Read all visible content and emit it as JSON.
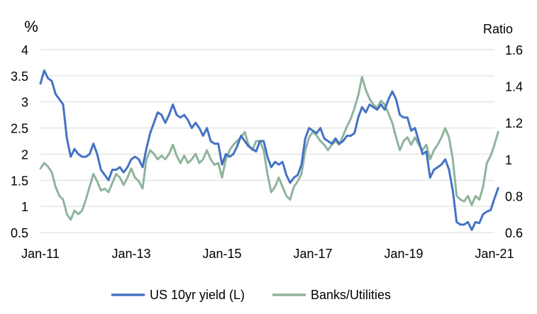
{
  "chart_data": {
    "type": "line",
    "x_tick_labels": [
      "Jan-11",
      "Jan-13",
      "Jan-15",
      "Jan-17",
      "Jan-19",
      "Jan-21"
    ],
    "x_range": [
      "2011-01",
      "2021-01"
    ],
    "left_axis": {
      "label": "%",
      "ylim": [
        0.5,
        4
      ],
      "ticks": [
        "0.5",
        "1",
        "1.5",
        "2",
        "2.5",
        "3",
        "3.5",
        "4"
      ]
    },
    "right_axis": {
      "label": "Ratio",
      "ylim": [
        0.6,
        1.6
      ],
      "ticks": [
        "0.6",
        "0.8",
        "1",
        "1.2",
        "1.4",
        "1.6"
      ]
    },
    "grid": "horizontal",
    "legend_position": "bottom",
    "series": [
      {
        "name": "US 10yr yield (L)",
        "axis": "left",
        "color": "#4472C4",
        "points": [
          [
            "2011-01",
            3.35
          ],
          [
            "2011-02",
            3.6
          ],
          [
            "2011-03",
            3.45
          ],
          [
            "2011-04",
            3.4
          ],
          [
            "2011-05",
            3.15
          ],
          [
            "2011-06",
            3.05
          ],
          [
            "2011-07",
            2.95
          ],
          [
            "2011-08",
            2.3
          ],
          [
            "2011-09",
            1.95
          ],
          [
            "2011-10",
            2.1
          ],
          [
            "2011-11",
            2.0
          ],
          [
            "2011-12",
            1.95
          ],
          [
            "2012-01",
            1.95
          ],
          [
            "2012-02",
            2.0
          ],
          [
            "2012-03",
            2.2
          ],
          [
            "2012-04",
            2.0
          ],
          [
            "2012-05",
            1.7
          ],
          [
            "2012-06",
            1.6
          ],
          [
            "2012-07",
            1.5
          ],
          [
            "2012-08",
            1.7
          ],
          [
            "2012-09",
            1.7
          ],
          [
            "2012-10",
            1.75
          ],
          [
            "2012-11",
            1.65
          ],
          [
            "2012-12",
            1.75
          ],
          [
            "2013-01",
            1.9
          ],
          [
            "2013-02",
            1.95
          ],
          [
            "2013-03",
            1.9
          ],
          [
            "2013-04",
            1.75
          ],
          [
            "2013-05",
            2.1
          ],
          [
            "2013-06",
            2.4
          ],
          [
            "2013-07",
            2.6
          ],
          [
            "2013-08",
            2.8
          ],
          [
            "2013-09",
            2.75
          ],
          [
            "2013-10",
            2.6
          ],
          [
            "2013-11",
            2.75
          ],
          [
            "2013-12",
            2.95
          ],
          [
            "2014-01",
            2.75
          ],
          [
            "2014-02",
            2.7
          ],
          [
            "2014-03",
            2.75
          ],
          [
            "2014-04",
            2.65
          ],
          [
            "2014-05",
            2.5
          ],
          [
            "2014-06",
            2.6
          ],
          [
            "2014-07",
            2.5
          ],
          [
            "2014-08",
            2.35
          ],
          [
            "2014-09",
            2.5
          ],
          [
            "2014-10",
            2.25
          ],
          [
            "2014-11",
            2.2
          ],
          [
            "2014-12",
            2.2
          ],
          [
            "2015-01",
            1.8
          ],
          [
            "2015-02",
            2.0
          ],
          [
            "2015-03",
            1.95
          ],
          [
            "2015-04",
            2.0
          ],
          [
            "2015-05",
            2.15
          ],
          [
            "2015-06",
            2.35
          ],
          [
            "2015-07",
            2.25
          ],
          [
            "2015-08",
            2.15
          ],
          [
            "2015-09",
            2.1
          ],
          [
            "2015-10",
            2.05
          ],
          [
            "2015-11",
            2.25
          ],
          [
            "2015-12",
            2.25
          ],
          [
            "2016-01",
            1.95
          ],
          [
            "2016-02",
            1.75
          ],
          [
            "2016-03",
            1.85
          ],
          [
            "2016-04",
            1.8
          ],
          [
            "2016-05",
            1.85
          ],
          [
            "2016-06",
            1.6
          ],
          [
            "2016-07",
            1.45
          ],
          [
            "2016-08",
            1.55
          ],
          [
            "2016-09",
            1.6
          ],
          [
            "2016-10",
            1.8
          ],
          [
            "2016-11",
            2.3
          ],
          [
            "2016-12",
            2.5
          ],
          [
            "2017-01",
            2.45
          ],
          [
            "2017-02",
            2.4
          ],
          [
            "2017-03",
            2.5
          ],
          [
            "2017-04",
            2.3
          ],
          [
            "2017-05",
            2.25
          ],
          [
            "2017-06",
            2.2
          ],
          [
            "2017-07",
            2.3
          ],
          [
            "2017-08",
            2.2
          ],
          [
            "2017-09",
            2.25
          ],
          [
            "2017-10",
            2.35
          ],
          [
            "2017-11",
            2.35
          ],
          [
            "2017-12",
            2.4
          ],
          [
            "2018-01",
            2.7
          ],
          [
            "2018-02",
            2.9
          ],
          [
            "2018-03",
            2.8
          ],
          [
            "2018-04",
            2.95
          ],
          [
            "2018-05",
            2.9
          ],
          [
            "2018-06",
            2.85
          ],
          [
            "2018-07",
            2.95
          ],
          [
            "2018-08",
            2.85
          ],
          [
            "2018-09",
            3.05
          ],
          [
            "2018-10",
            3.2
          ],
          [
            "2018-11",
            3.05
          ],
          [
            "2018-12",
            2.75
          ],
          [
            "2019-01",
            2.7
          ],
          [
            "2019-02",
            2.7
          ],
          [
            "2019-03",
            2.45
          ],
          [
            "2019-04",
            2.5
          ],
          [
            "2019-05",
            2.25
          ],
          [
            "2019-06",
            2.0
          ],
          [
            "2019-07",
            2.05
          ],
          [
            "2019-08",
            1.55
          ],
          [
            "2019-09",
            1.7
          ],
          [
            "2019-10",
            1.75
          ],
          [
            "2019-11",
            1.8
          ],
          [
            "2019-12",
            1.9
          ],
          [
            "2020-01",
            1.7
          ],
          [
            "2020-02",
            1.3
          ],
          [
            "2020-03",
            0.7
          ],
          [
            "2020-04",
            0.65
          ],
          [
            "2020-05",
            0.65
          ],
          [
            "2020-06",
            0.7
          ],
          [
            "2020-07",
            0.55
          ],
          [
            "2020-08",
            0.7
          ],
          [
            "2020-09",
            0.68
          ],
          [
            "2020-10",
            0.85
          ],
          [
            "2020-11",
            0.9
          ],
          [
            "2020-12",
            0.93
          ],
          [
            "2021-01",
            1.15
          ],
          [
            "2021-02",
            1.35
          ]
        ]
      },
      {
        "name": "Banks/Utilities",
        "axis": "right",
        "color": "#8FB49D",
        "points": [
          [
            "2011-01",
            0.95
          ],
          [
            "2011-02",
            0.98
          ],
          [
            "2011-03",
            0.96
          ],
          [
            "2011-04",
            0.93
          ],
          [
            "2011-05",
            0.85
          ],
          [
            "2011-06",
            0.8
          ],
          [
            "2011-07",
            0.78
          ],
          [
            "2011-08",
            0.7
          ],
          [
            "2011-09",
            0.67
          ],
          [
            "2011-10",
            0.72
          ],
          [
            "2011-11",
            0.7
          ],
          [
            "2011-12",
            0.72
          ],
          [
            "2012-01",
            0.78
          ],
          [
            "2012-02",
            0.85
          ],
          [
            "2012-03",
            0.92
          ],
          [
            "2012-04",
            0.88
          ],
          [
            "2012-05",
            0.83
          ],
          [
            "2012-06",
            0.84
          ],
          [
            "2012-07",
            0.82
          ],
          [
            "2012-08",
            0.87
          ],
          [
            "2012-09",
            0.92
          ],
          [
            "2012-10",
            0.9
          ],
          [
            "2012-11",
            0.86
          ],
          [
            "2012-12",
            0.9
          ],
          [
            "2013-01",
            0.95
          ],
          [
            "2013-02",
            0.9
          ],
          [
            "2013-03",
            0.88
          ],
          [
            "2013-04",
            0.84
          ],
          [
            "2013-05",
            1.0
          ],
          [
            "2013-06",
            1.05
          ],
          [
            "2013-07",
            1.03
          ],
          [
            "2013-08",
            1.0
          ],
          [
            "2013-09",
            1.02
          ],
          [
            "2013-10",
            1.0
          ],
          [
            "2013-11",
            1.03
          ],
          [
            "2013-12",
            1.08
          ],
          [
            "2014-01",
            1.02
          ],
          [
            "2014-02",
            0.98
          ],
          [
            "2014-03",
            1.02
          ],
          [
            "2014-04",
            0.98
          ],
          [
            "2014-05",
            1.0
          ],
          [
            "2014-06",
            1.03
          ],
          [
            "2014-07",
            0.98
          ],
          [
            "2014-08",
            1.0
          ],
          [
            "2014-09",
            1.05
          ],
          [
            "2014-10",
            1.0
          ],
          [
            "2014-11",
            0.97
          ],
          [
            "2014-12",
            0.98
          ],
          [
            "2015-01",
            0.9
          ],
          [
            "2015-02",
            1.0
          ],
          [
            "2015-03",
            1.05
          ],
          [
            "2015-04",
            1.08
          ],
          [
            "2015-05",
            1.1
          ],
          [
            "2015-06",
            1.12
          ],
          [
            "2015-07",
            1.15
          ],
          [
            "2015-08",
            1.08
          ],
          [
            "2015-09",
            1.05
          ],
          [
            "2015-10",
            1.1
          ],
          [
            "2015-11",
            1.1
          ],
          [
            "2015-12",
            1.05
          ],
          [
            "2016-01",
            0.92
          ],
          [
            "2016-02",
            0.82
          ],
          [
            "2016-03",
            0.85
          ],
          [
            "2016-04",
            0.9
          ],
          [
            "2016-05",
            0.85
          ],
          [
            "2016-06",
            0.8
          ],
          [
            "2016-07",
            0.78
          ],
          [
            "2016-08",
            0.85
          ],
          [
            "2016-09",
            0.88
          ],
          [
            "2016-10",
            0.92
          ],
          [
            "2016-11",
            1.05
          ],
          [
            "2016-12",
            1.12
          ],
          [
            "2017-01",
            1.15
          ],
          [
            "2017-02",
            1.13
          ],
          [
            "2017-03",
            1.1
          ],
          [
            "2017-04",
            1.08
          ],
          [
            "2017-05",
            1.05
          ],
          [
            "2017-06",
            1.08
          ],
          [
            "2017-07",
            1.1
          ],
          [
            "2017-08",
            1.08
          ],
          [
            "2017-09",
            1.13
          ],
          [
            "2017-10",
            1.18
          ],
          [
            "2017-11",
            1.22
          ],
          [
            "2017-12",
            1.28
          ],
          [
            "2018-01",
            1.35
          ],
          [
            "2018-02",
            1.45
          ],
          [
            "2018-03",
            1.38
          ],
          [
            "2018-04",
            1.33
          ],
          [
            "2018-05",
            1.3
          ],
          [
            "2018-06",
            1.28
          ],
          [
            "2018-07",
            1.32
          ],
          [
            "2018-08",
            1.3
          ],
          [
            "2018-09",
            1.25
          ],
          [
            "2018-10",
            1.2
          ],
          [
            "2018-11",
            1.12
          ],
          [
            "2018-12",
            1.05
          ],
          [
            "2019-01",
            1.1
          ],
          [
            "2019-02",
            1.12
          ],
          [
            "2019-03",
            1.08
          ],
          [
            "2019-04",
            1.12
          ],
          [
            "2019-05",
            1.08
          ],
          [
            "2019-06",
            1.05
          ],
          [
            "2019-07",
            1.08
          ],
          [
            "2019-08",
            1.0
          ],
          [
            "2019-09",
            1.05
          ],
          [
            "2019-10",
            1.08
          ],
          [
            "2019-11",
            1.12
          ],
          [
            "2019-12",
            1.17
          ],
          [
            "2020-01",
            1.12
          ],
          [
            "2020-02",
            1.0
          ],
          [
            "2020-03",
            0.8
          ],
          [
            "2020-04",
            0.78
          ],
          [
            "2020-05",
            0.77
          ],
          [
            "2020-06",
            0.8
          ],
          [
            "2020-07",
            0.75
          ],
          [
            "2020-08",
            0.8
          ],
          [
            "2020-09",
            0.78
          ],
          [
            "2020-10",
            0.85
          ],
          [
            "2020-11",
            0.98
          ],
          [
            "2020-12",
            1.02
          ],
          [
            "2021-01",
            1.08
          ],
          [
            "2021-02",
            1.15
          ]
        ]
      }
    ]
  }
}
